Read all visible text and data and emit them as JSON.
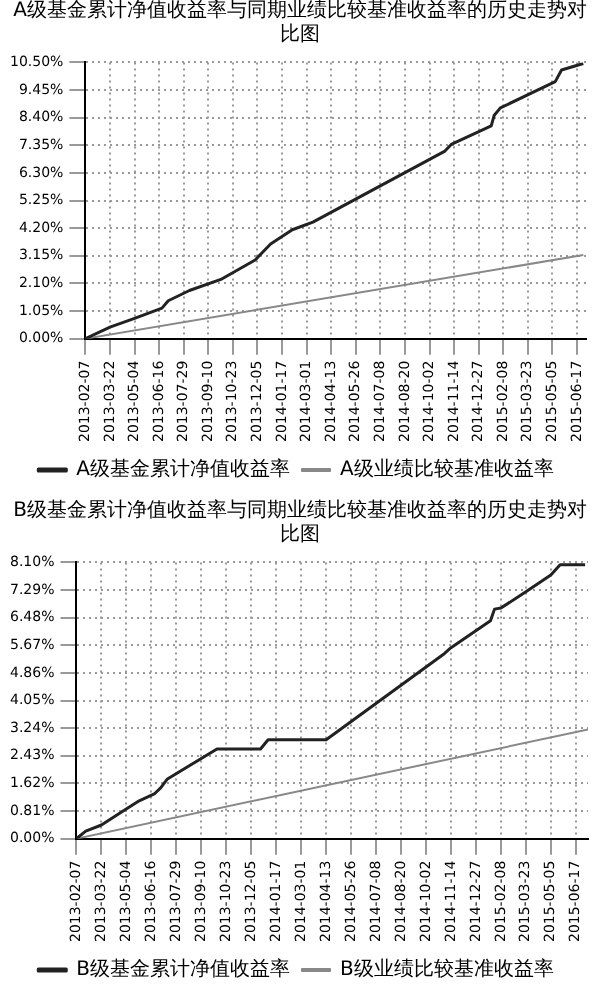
{
  "chart_data": [
    {
      "type": "line",
      "title": "A级基金累计净值收益率与同期业绩比较基准收益率的历史走势对比图",
      "legend": "bottom",
      "grid": true,
      "marker": "none",
      "line_style": "solid",
      "xlim": [
        "2013-02-07",
        "2015-07-03"
      ],
      "xticks": [
        "2013-02-07",
        "2013-03-22",
        "2013-05-04",
        "2013-06-16",
        "2013-07-29",
        "2013-09-10",
        "2013-10-23",
        "2013-12-05",
        "2014-01-17",
        "2014-03-01",
        "2014-04-13",
        "2014-05-26",
        "2014-07-08",
        "2014-08-20",
        "2014-10-02",
        "2014-11-14",
        "2014-12-27",
        "2015-02-08",
        "2015-03-23",
        "2015-05-05",
        "2015-06-17"
      ],
      "ylim": [
        0,
        10.5
      ],
      "yticks": [
        {
          "value": 0,
          "label": "0.00%"
        },
        {
          "value": 1.05,
          "label": "1.05%"
        },
        {
          "value": 2.1,
          "label": "2.10%"
        },
        {
          "value": 3.15,
          "label": "3.15%"
        },
        {
          "value": 4.2,
          "label": "4.20%"
        },
        {
          "value": 5.25,
          "label": "5.25%"
        },
        {
          "value": 6.3,
          "label": "6.30%"
        },
        {
          "value": 7.35,
          "label": "7.35%"
        },
        {
          "value": 8.4,
          "label": "8.40%"
        },
        {
          "value": 9.45,
          "label": "9.45%"
        },
        {
          "value": 10.5,
          "label": "10.50%"
        }
      ],
      "series": [
        {
          "name": "A级基金累计净值收益率",
          "color": "#222222",
          "x": [
            "2013-02-07",
            "2013-03-22",
            "2013-05-04",
            "2013-06-21",
            "2013-07-02",
            "2013-08-08",
            "2013-10-02",
            "2013-12-01",
            "2013-12-28",
            "2014-02-04",
            "2014-03-12",
            "2014-10-29",
            "2014-11-09",
            "2015-01-18",
            "2015-01-23",
            "2015-02-03",
            "2015-05-10",
            "2015-05-21",
            "2015-06-28"
          ],
          "values": [
            0,
            0.44,
            0.77,
            1.16,
            1.44,
            1.83,
            2.25,
            2.99,
            3.6,
            4.14,
            4.43,
            7.13,
            7.38,
            8.09,
            8.48,
            8.77,
            9.77,
            10.21,
            10.46
          ]
        },
        {
          "name": "A级业绩比较基准收益率",
          "color": "#888888",
          "x": [
            "2013-02-07",
            "2015-06-28"
          ],
          "values": [
            0,
            3.18
          ]
        }
      ]
    },
    {
      "type": "line",
      "title": "B级基金累计净值收益率与同期业绩比较基准收益率的历史走势对比图",
      "legend": "bottom",
      "grid": true,
      "marker": "none",
      "line_style": "solid",
      "xlim": [
        "2013-02-07",
        "2015-07-08"
      ],
      "xticks": [
        "2013-02-07",
        "2013-03-22",
        "2013-05-04",
        "2013-06-16",
        "2013-07-29",
        "2013-09-10",
        "2013-10-23",
        "2013-12-05",
        "2014-01-17",
        "2014-03-01",
        "2014-04-13",
        "2014-05-26",
        "2014-07-08",
        "2014-08-20",
        "2014-10-02",
        "2014-11-14",
        "2014-12-27",
        "2015-02-08",
        "2015-03-23",
        "2015-05-05",
        "2015-06-17"
      ],
      "ylim": [
        0,
        8.1
      ],
      "yticks": [
        {
          "value": 0,
          "label": "0.00%"
        },
        {
          "value": 0.81,
          "label": "0.81%"
        },
        {
          "value": 1.62,
          "label": "1.62%"
        },
        {
          "value": 2.43,
          "label": "2.43%"
        },
        {
          "value": 3.24,
          "label": "3.24%"
        },
        {
          "value": 4.05,
          "label": "4.05%"
        },
        {
          "value": 4.86,
          "label": "4.86%"
        },
        {
          "value": 5.67,
          "label": "5.67%"
        },
        {
          "value": 6.48,
          "label": "6.48%"
        },
        {
          "value": 7.29,
          "label": "7.29%"
        },
        {
          "value": 8.1,
          "label": "8.10%"
        }
      ],
      "series": [
        {
          "name": "B级基金累计净值收益率",
          "color": "#222222",
          "x": [
            "2013-02-07",
            "2013-02-23",
            "2013-03-22",
            "2013-04-29",
            "2013-05-26",
            "2013-06-21",
            "2013-07-02",
            "2013-07-13",
            "2013-09-05",
            "2013-10-07",
            "2013-12-21",
            "2014-01-03",
            "2014-04-13",
            "2014-11-03",
            "2014-11-14",
            "2015-01-21",
            "2015-01-28",
            "2015-02-08",
            "2015-03-23",
            "2015-05-05",
            "2015-05-21",
            "2015-07-03"
          ],
          "values": [
            0,
            0.22,
            0.4,
            0.82,
            1.11,
            1.31,
            1.49,
            1.74,
            2.3,
            2.63,
            2.63,
            2.9,
            2.9,
            5.43,
            5.6,
            6.39,
            6.73,
            6.76,
            7.24,
            7.73,
            8.03,
            8.03
          ]
        },
        {
          "name": "B级业绩比较基准收益率",
          "color": "#888888",
          "x": [
            "2013-02-07",
            "2015-07-08"
          ],
          "values": [
            0,
            3.2
          ]
        }
      ]
    }
  ]
}
